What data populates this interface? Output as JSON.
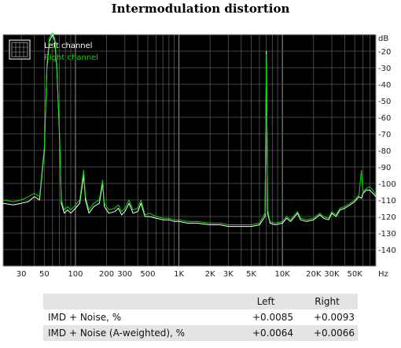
{
  "chart_data": {
    "type": "line",
    "title": "Intermodulation distortion",
    "xscale": "log",
    "xlim": [
      20,
      80000
    ],
    "ylim": [
      -150,
      -10
    ],
    "y_unit": "dB",
    "x_unit": "Hz",
    "x_ticks": [
      {
        "value": 30,
        "label": "30"
      },
      {
        "value": 50,
        "label": "50"
      },
      {
        "value": 100,
        "label": "100"
      },
      {
        "value": 200,
        "label": "200"
      },
      {
        "value": 300,
        "label": "300"
      },
      {
        "value": 500,
        "label": "500"
      },
      {
        "value": 1000,
        "label": "1K"
      },
      {
        "value": 2000,
        "label": "2K"
      },
      {
        "value": 3000,
        "label": "3K"
      },
      {
        "value": 5000,
        "label": "5K"
      },
      {
        "value": 10000,
        "label": "10K"
      },
      {
        "value": 20000,
        "label": "20K"
      },
      {
        "value": 30000,
        "label": "30K"
      },
      {
        "value": 50000,
        "label": "50K"
      }
    ],
    "y_ticks": [
      {
        "value": -20,
        "label": "-20"
      },
      {
        "value": -30,
        "label": "-30"
      },
      {
        "value": -40,
        "label": "-40"
      },
      {
        "value": -50,
        "label": "-50"
      },
      {
        "value": -60,
        "label": "-60"
      },
      {
        "value": -70,
        "label": "-70"
      },
      {
        "value": -80,
        "label": "-80"
      },
      {
        "value": -90,
        "label": "-90"
      },
      {
        "value": -100,
        "label": "-100"
      },
      {
        "value": -110,
        "label": "-110"
      },
      {
        "value": -120,
        "label": "-120"
      },
      {
        "value": -130,
        "label": "-130"
      },
      {
        "value": -140,
        "label": "-140"
      }
    ],
    "grid": true,
    "legend_position": "top-left",
    "series": [
      {
        "name": "Left channel",
        "color": "#ffffff",
        "points": [
          [
            20,
            -112
          ],
          [
            25,
            -113
          ],
          [
            30,
            -112
          ],
          [
            35,
            -111
          ],
          [
            40,
            -108
          ],
          [
            45,
            -110
          ],
          [
            50,
            -80
          ],
          [
            53,
            -30
          ],
          [
            56,
            -14
          ],
          [
            60,
            -10
          ],
          [
            63,
            -14
          ],
          [
            66,
            -30
          ],
          [
            70,
            -70
          ],
          [
            73,
            -112
          ],
          [
            78,
            -118
          ],
          [
            84,
            -116
          ],
          [
            90,
            -118
          ],
          [
            100,
            -115
          ],
          [
            110,
            -112
          ],
          [
            120,
            -95
          ],
          [
            125,
            -110
          ],
          [
            135,
            -118
          ],
          [
            150,
            -114
          ],
          [
            170,
            -112
          ],
          [
            183,
            -100
          ],
          [
            190,
            -114
          ],
          [
            210,
            -118
          ],
          [
            240,
            -117
          ],
          [
            260,
            -115
          ],
          [
            280,
            -119
          ],
          [
            300,
            -117
          ],
          [
            330,
            -112
          ],
          [
            360,
            -118
          ],
          [
            400,
            -117
          ],
          [
            430,
            -112
          ],
          [
            470,
            -120
          ],
          [
            520,
            -120
          ],
          [
            600,
            -121
          ],
          [
            700,
            -122
          ],
          [
            800,
            -122
          ],
          [
            900,
            -123
          ],
          [
            1000,
            -123
          ],
          [
            1200,
            -124
          ],
          [
            1500,
            -124
          ],
          [
            2000,
            -125
          ],
          [
            2500,
            -125
          ],
          [
            3000,
            -126
          ],
          [
            4000,
            -126
          ],
          [
            5000,
            -126
          ],
          [
            6000,
            -125
          ],
          [
            6800,
            -120
          ],
          [
            7000,
            -20
          ],
          [
            7200,
            -118
          ],
          [
            7600,
            -124
          ],
          [
            8500,
            -125
          ],
          [
            10000,
            -124
          ],
          [
            11000,
            -121
          ],
          [
            12000,
            -123
          ],
          [
            14000,
            -118
          ],
          [
            15000,
            -122
          ],
          [
            17000,
            -123
          ],
          [
            20000,
            -122
          ],
          [
            23000,
            -119
          ],
          [
            25000,
            -121
          ],
          [
            28000,
            -122
          ],
          [
            30000,
            -118
          ],
          [
            33000,
            -120
          ],
          [
            36000,
            -116
          ],
          [
            40000,
            -115
          ],
          [
            45000,
            -113
          ],
          [
            50000,
            -111
          ],
          [
            55000,
            -108
          ],
          [
            58000,
            -109
          ],
          [
            60000,
            -106
          ],
          [
            65000,
            -104
          ],
          [
            70000,
            -104
          ],
          [
            75000,
            -106
          ],
          [
            80000,
            -108
          ]
        ]
      },
      {
        "name": "Right channel",
        "color": "#00e000",
        "points": [
          [
            20,
            -110
          ],
          [
            25,
            -111
          ],
          [
            30,
            -110
          ],
          [
            35,
            -108
          ],
          [
            40,
            -106
          ],
          [
            45,
            -108
          ],
          [
            50,
            -78
          ],
          [
            53,
            -28
          ],
          [
            56,
            -12
          ],
          [
            60,
            -9
          ],
          [
            63,
            -12
          ],
          [
            66,
            -28
          ],
          [
            70,
            -68
          ],
          [
            73,
            -110
          ],
          [
            78,
            -116
          ],
          [
            84,
            -114
          ],
          [
            90,
            -116
          ],
          [
            100,
            -113
          ],
          [
            110,
            -110
          ],
          [
            120,
            -92
          ],
          [
            125,
            -108
          ],
          [
            135,
            -116
          ],
          [
            150,
            -112
          ],
          [
            170,
            -110
          ],
          [
            183,
            -98
          ],
          [
            190,
            -112
          ],
          [
            210,
            -116
          ],
          [
            240,
            -115
          ],
          [
            260,
            -113
          ],
          [
            280,
            -117
          ],
          [
            300,
            -115
          ],
          [
            330,
            -110
          ],
          [
            360,
            -116
          ],
          [
            400,
            -115
          ],
          [
            430,
            -110
          ],
          [
            470,
            -119
          ],
          [
            520,
            -118
          ],
          [
            600,
            -120
          ],
          [
            700,
            -121
          ],
          [
            800,
            -121
          ],
          [
            900,
            -122
          ],
          [
            1000,
            -122
          ],
          [
            1200,
            -123
          ],
          [
            1500,
            -123
          ],
          [
            2000,
            -124
          ],
          [
            2500,
            -124
          ],
          [
            3000,
            -125
          ],
          [
            4000,
            -125
          ],
          [
            5000,
            -125
          ],
          [
            6000,
            -124
          ],
          [
            6800,
            -118
          ],
          [
            7000,
            -22
          ],
          [
            7200,
            -116
          ],
          [
            7600,
            -123
          ],
          [
            8500,
            -124
          ],
          [
            10000,
            -123
          ],
          [
            11000,
            -120
          ],
          [
            12000,
            -122
          ],
          [
            14000,
            -117
          ],
          [
            15000,
            -121
          ],
          [
            17000,
            -122
          ],
          [
            20000,
            -121
          ],
          [
            23000,
            -118
          ],
          [
            25000,
            -120
          ],
          [
            28000,
            -121
          ],
          [
            30000,
            -117
          ],
          [
            33000,
            -119
          ],
          [
            36000,
            -115
          ],
          [
            40000,
            -114
          ],
          [
            45000,
            -112
          ],
          [
            50000,
            -110
          ],
          [
            55000,
            -107
          ],
          [
            58000,
            -92
          ],
          [
            60000,
            -105
          ],
          [
            65000,
            -103
          ],
          [
            70000,
            -102
          ],
          [
            75000,
            -104
          ],
          [
            80000,
            -107
          ]
        ]
      }
    ]
  },
  "results": {
    "header": {
      "left": "Left",
      "right": "Right"
    },
    "rows": [
      {
        "label": "IMD + Noise, %",
        "left": "+0.0085",
        "right": "+0.0093"
      },
      {
        "label": "IMD + Noise (A-weighted), %",
        "left": "+0.0064",
        "right": "+0.0066"
      }
    ]
  },
  "icons": {
    "legend_icon": "grid-icon"
  }
}
